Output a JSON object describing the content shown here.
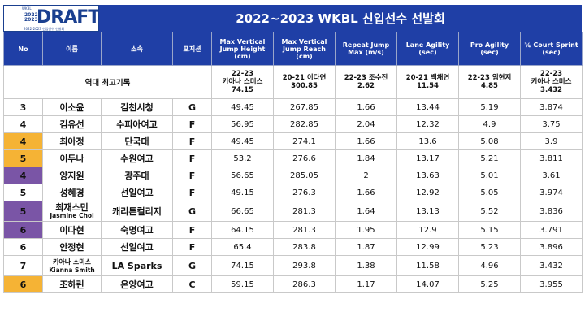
{
  "logo": {
    "small": "WKBL",
    "years": [
      "2022",
      "2023"
    ],
    "word": "DRAFT",
    "sub": "2022-2023 신입선수 선발회"
  },
  "title": "2022~2023 WKBL 신입선수 선발회",
  "columns": [
    "No",
    "이름",
    "소속",
    "포지션",
    "Max Vertical Jump Height (cm)",
    "Max Vertical Jump Reach (cm)",
    "Repeat Jump Max (m/s)",
    "Lane Agility (sec)",
    "Pro Agility (sec)",
    "¾ Court Sprint (sec)"
  ],
  "records": {
    "label": "역대 최고기록",
    "values": [
      [
        "22-23",
        "키아나 스미스",
        "74.15"
      ],
      [
        "20-21 이다연",
        "300.85"
      ],
      [
        "22-23 조수진",
        "2.62"
      ],
      [
        "20-21 백채연",
        "11.54"
      ],
      [
        "22-23 임현지",
        "4.85"
      ],
      [
        "22-23",
        "키아나 스미스",
        "3.432"
      ]
    ]
  },
  "rows": [
    {
      "no": "3",
      "highlight": "",
      "name": "이소윤",
      "name_en": "",
      "team": "김천시청",
      "pos": "G",
      "v": [
        "49.45",
        "267.85",
        "1.66",
        "13.44",
        "5.19",
        "3.874"
      ]
    },
    {
      "no": "4",
      "highlight": "",
      "name": "김유선",
      "name_en": "",
      "team": "수피아여고",
      "pos": "F",
      "v": [
        "56.95",
        "282.85",
        "2.04",
        "12.32",
        "4.9",
        "3.75"
      ]
    },
    {
      "no": "4",
      "highlight": "orange",
      "name": "최아정",
      "name_en": "",
      "team": "단국대",
      "pos": "F",
      "v": [
        "49.45",
        "274.1",
        "1.66",
        "13.6",
        "5.08",
        "3.9"
      ]
    },
    {
      "no": "5",
      "highlight": "orange",
      "name": "이두나",
      "name_en": "",
      "team": "수원여고",
      "pos": "F",
      "v": [
        "53.2",
        "276.6",
        "1.84",
        "13.17",
        "5.21",
        "3.811"
      ]
    },
    {
      "no": "4",
      "highlight": "purple",
      "name": "양지원",
      "name_en": "",
      "team": "광주대",
      "pos": "F",
      "v": [
        "56.65",
        "285.05",
        "2",
        "13.63",
        "5.01",
        "3.61"
      ]
    },
    {
      "no": "5",
      "highlight": "",
      "name": "성혜경",
      "name_en": "",
      "team": "선일여고",
      "pos": "F",
      "v": [
        "49.15",
        "276.3",
        "1.66",
        "12.92",
        "5.05",
        "3.974"
      ]
    },
    {
      "no": "5",
      "highlight": "purple",
      "name": "최재스민",
      "name_en": "Jasmine Choi",
      "team": "캐리튼컬리지",
      "pos": "G",
      "v": [
        "66.65",
        "281.3",
        "1.64",
        "13.13",
        "5.52",
        "3.836"
      ]
    },
    {
      "no": "6",
      "highlight": "purple",
      "name": "이다현",
      "name_en": "",
      "team": "숙명여고",
      "pos": "F",
      "v": [
        "64.15",
        "281.3",
        "1.95",
        "12.9",
        "5.15",
        "3.791"
      ]
    },
    {
      "no": "6",
      "highlight": "",
      "name": "안정현",
      "name_en": "",
      "team": "선일여고",
      "pos": "F",
      "v": [
        "65.4",
        "283.8",
        "1.87",
        "12.99",
        "5.23",
        "3.896"
      ]
    },
    {
      "no": "7",
      "highlight": "",
      "name": "키아나 스미스",
      "name_en": "Kianna Smith",
      "team": "LA Sparks",
      "pos": "G",
      "v": [
        "74.15",
        "293.8",
        "1.38",
        "11.58",
        "4.96",
        "3.432"
      ]
    },
    {
      "no": "6",
      "highlight": "orange",
      "name": "조하린",
      "name_en": "",
      "team": "온양여고",
      "pos": "C",
      "v": [
        "59.15",
        "286.3",
        "1.17",
        "14.07",
        "5.25",
        "3.955"
      ]
    }
  ],
  "colors": {
    "header": "#1f3fa6",
    "orange": "#f5b335",
    "purple": "#7a55a6"
  }
}
